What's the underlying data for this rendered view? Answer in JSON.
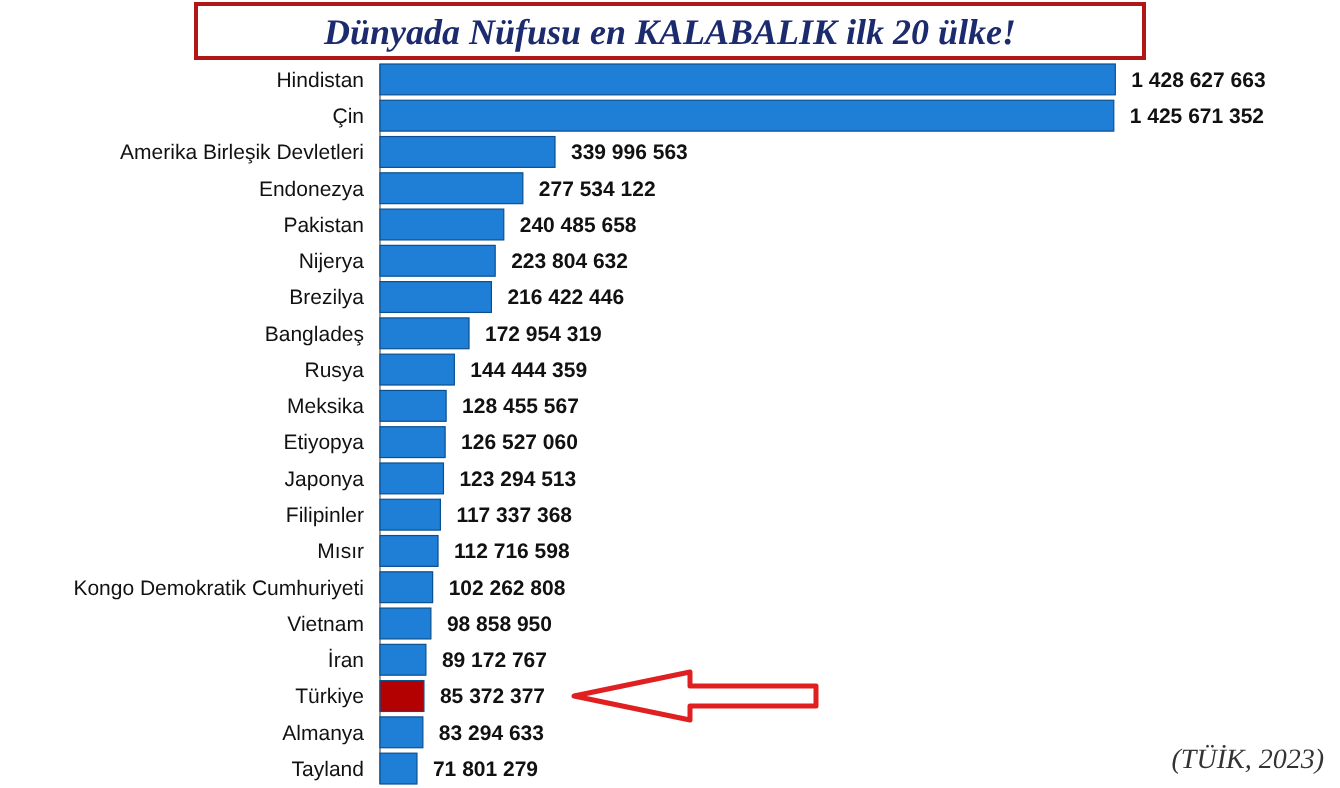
{
  "chart_data": {
    "type": "bar",
    "orientation": "horizontal",
    "title": "Dünyada Nüfusu en KALABALIK ilk 20 ülke!",
    "categories": [
      "Hindistan",
      "Çin",
      "Amerika Birleşik Devletleri",
      "Endonezya",
      "Pakistan",
      "Nijerya",
      "Brezilya",
      "Bangladeş",
      "Rusya",
      "Meksika",
      "Etiyopya",
      "Japonya",
      "Filipinler",
      "Mısır",
      "Kongo Demokratik Cumhuriyeti",
      "Vietnam",
      "İran",
      "Türkiye",
      "Almanya",
      "Tayland"
    ],
    "values": [
      1428627663,
      1425671352,
      339996563,
      277534122,
      240485658,
      223804632,
      216422446,
      172954319,
      144444359,
      128455567,
      126527060,
      123294513,
      117337368,
      112716598,
      102262808,
      98858950,
      89172767,
      85372377,
      83294633,
      71801279
    ],
    "value_labels": [
      "1 428 627 663",
      "1 425 671 352",
      "339 996 563",
      "277 534 122",
      "240 485 658",
      "223 804 632",
      "216 422 446",
      "172 954 319",
      "144 444 359",
      "128 455 567",
      "126 527 060",
      "123 294 513",
      "117 337 368",
      "112 716 598",
      "102 262 808",
      "98 858 950",
      "89 172 767",
      "85 372 377",
      "83 294 633",
      "71 801 279"
    ],
    "colors": [
      "#1f7fd6",
      "#1f7fd6",
      "#1f7fd6",
      "#1f7fd6",
      "#1f7fd6",
      "#1f7fd6",
      "#1f7fd6",
      "#1f7fd6",
      "#1f7fd6",
      "#1f7fd6",
      "#1f7fd6",
      "#1f7fd6",
      "#1f7fd6",
      "#1f7fd6",
      "#1f7fd6",
      "#1f7fd6",
      "#1f7fd6",
      "#b30000",
      "#1f7fd6",
      "#1f7fd6"
    ],
    "xlim": [
      0,
      1430000000
    ],
    "tick_labels": "y",
    "annotations": [
      "(TÜİK, 2023)"
    ]
  }
}
